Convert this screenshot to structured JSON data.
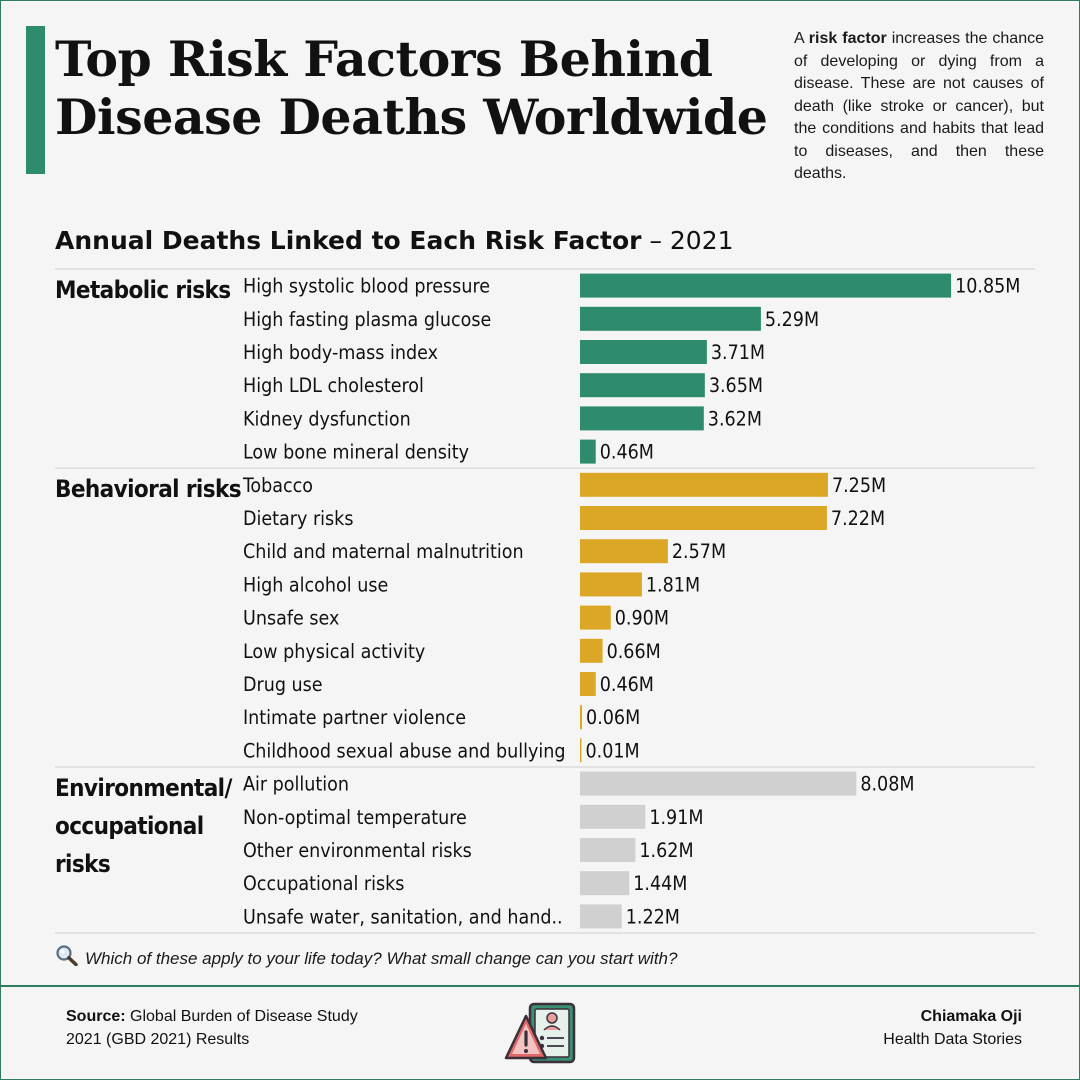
{
  "title_line1": "Top Risk Factors Behind",
  "title_line2": "Disease Deaths Worldwide",
  "intro": {
    "prefix": "A ",
    "term": "risk factor",
    "text": " increases the chance of developing or dying from a disease. These are not causes of death (like stroke or cancer), but the conditions and habits that lead to diseases, and then these deaths."
  },
  "subtitle": {
    "main": "Annual Deaths Linked to Each Risk Factor",
    "suffix": " – 2021"
  },
  "question": "Which of these apply to your life today? What small change can you start with?",
  "source": {
    "label": "Source:",
    "text": " Global Burden of Disease Study 2021 (GBD 2021) Results"
  },
  "author": {
    "name": "Chiamaka Oji",
    "org": "Health Data Stories"
  },
  "icons": {
    "question_icon": "magnifying-glass-icon",
    "logo_icon": "health-risk-warning-icon"
  },
  "chart_data": {
    "type": "bar",
    "orientation": "horizontal",
    "title": "Annual Deaths Linked to Each Risk Factor – 2021",
    "value_suffix": "M",
    "grid": false,
    "groups": [
      {
        "name": "Metabolic risks",
        "color": "#2e8b6e",
        "categories": [
          "High systolic blood pressure",
          "High fasting plasma glucose",
          "High body-mass index",
          "High LDL cholesterol",
          "Kidney dysfunction",
          "Low bone mineral density"
        ],
        "values": [
          10.85,
          5.29,
          3.71,
          3.65,
          3.62,
          0.46
        ]
      },
      {
        "name": "Behavioral risks",
        "color": "#dca726",
        "categories": [
          "Tobacco",
          "Dietary risks",
          "Child and maternal malnutrition",
          "High alcohol use",
          "Unsafe sex",
          "Low physical activity",
          "Drug use",
          "Intimate partner violence",
          "Childhood sexual abuse and bullying"
        ],
        "values": [
          7.25,
          7.22,
          2.57,
          1.81,
          0.9,
          0.66,
          0.46,
          0.06,
          0.01
        ]
      },
      {
        "name": "Environmental/ occupational risks",
        "color": "#d0d0d0",
        "categories": [
          "Air pollution",
          "Non-optimal temperature",
          "Other environmental risks",
          "Occupational risks",
          "Unsafe water, sanitation, and hand.."
        ],
        "values": [
          8.08,
          1.91,
          1.62,
          1.44,
          1.22
        ]
      }
    ]
  }
}
